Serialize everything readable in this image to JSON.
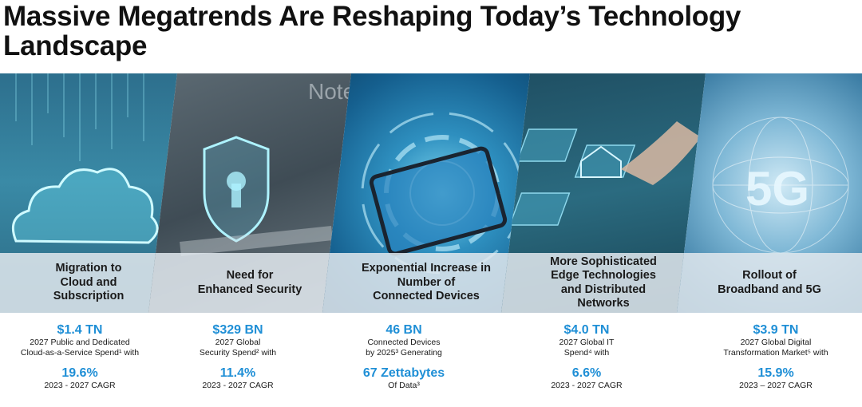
{
  "title": "Massive Megatrends Are Reshaping Today’s Technology Landscape",
  "panels": [
    {
      "label": "Migration to\nCloud and\nSubscription",
      "stat1": "$1.4 TN",
      "desc1": "2027 Public and Dedicated\nCloud-as-a-Service Spend¹ with",
      "stat2": "19.6%",
      "desc2": "2023 - 2027 CAGR"
    },
    {
      "label": "Need for\nEnhanced Security",
      "stat1": "$329 BN",
      "desc1": "2027 Global\nSecurity Spend² with",
      "stat2": "11.4%",
      "desc2": "2023 - 2027 CAGR"
    },
    {
      "label": "Exponential Increase in\nNumber of\nConnected Devices",
      "stat1": "46 BN",
      "desc1": "Connected Devices\nby 2025³ Generating",
      "stat2": "67 Zettabytes",
      "desc2": "Of Data³"
    },
    {
      "label": "More Sophisticated\nEdge Technologies\nand Distributed\nNetworks",
      "stat1": "$4.0 TN",
      "desc1": "2027 Global IT\nSpend⁴ with",
      "stat2": "6.6%",
      "desc2": "2023 - 2027 CAGR"
    },
    {
      "label": "Rollout of\nBroadband and 5G",
      "stat1": "$3.9 TN",
      "desc1": "2027 Global Digital\nTransformation Market⁵ with",
      "stat2": "15.9%",
      "desc2": "2023 – 2027 CAGR"
    }
  ],
  "image_text": {
    "note": "Note",
    "five_g": "5G"
  },
  "colors": {
    "accent": "#1f8fd6",
    "title": "#111111",
    "band": "#e1e8ee"
  },
  "icons": [
    "cloud-icon",
    "shield-lock-icon",
    "tablet-icon",
    "house-icon",
    "globe-network-icon"
  ]
}
